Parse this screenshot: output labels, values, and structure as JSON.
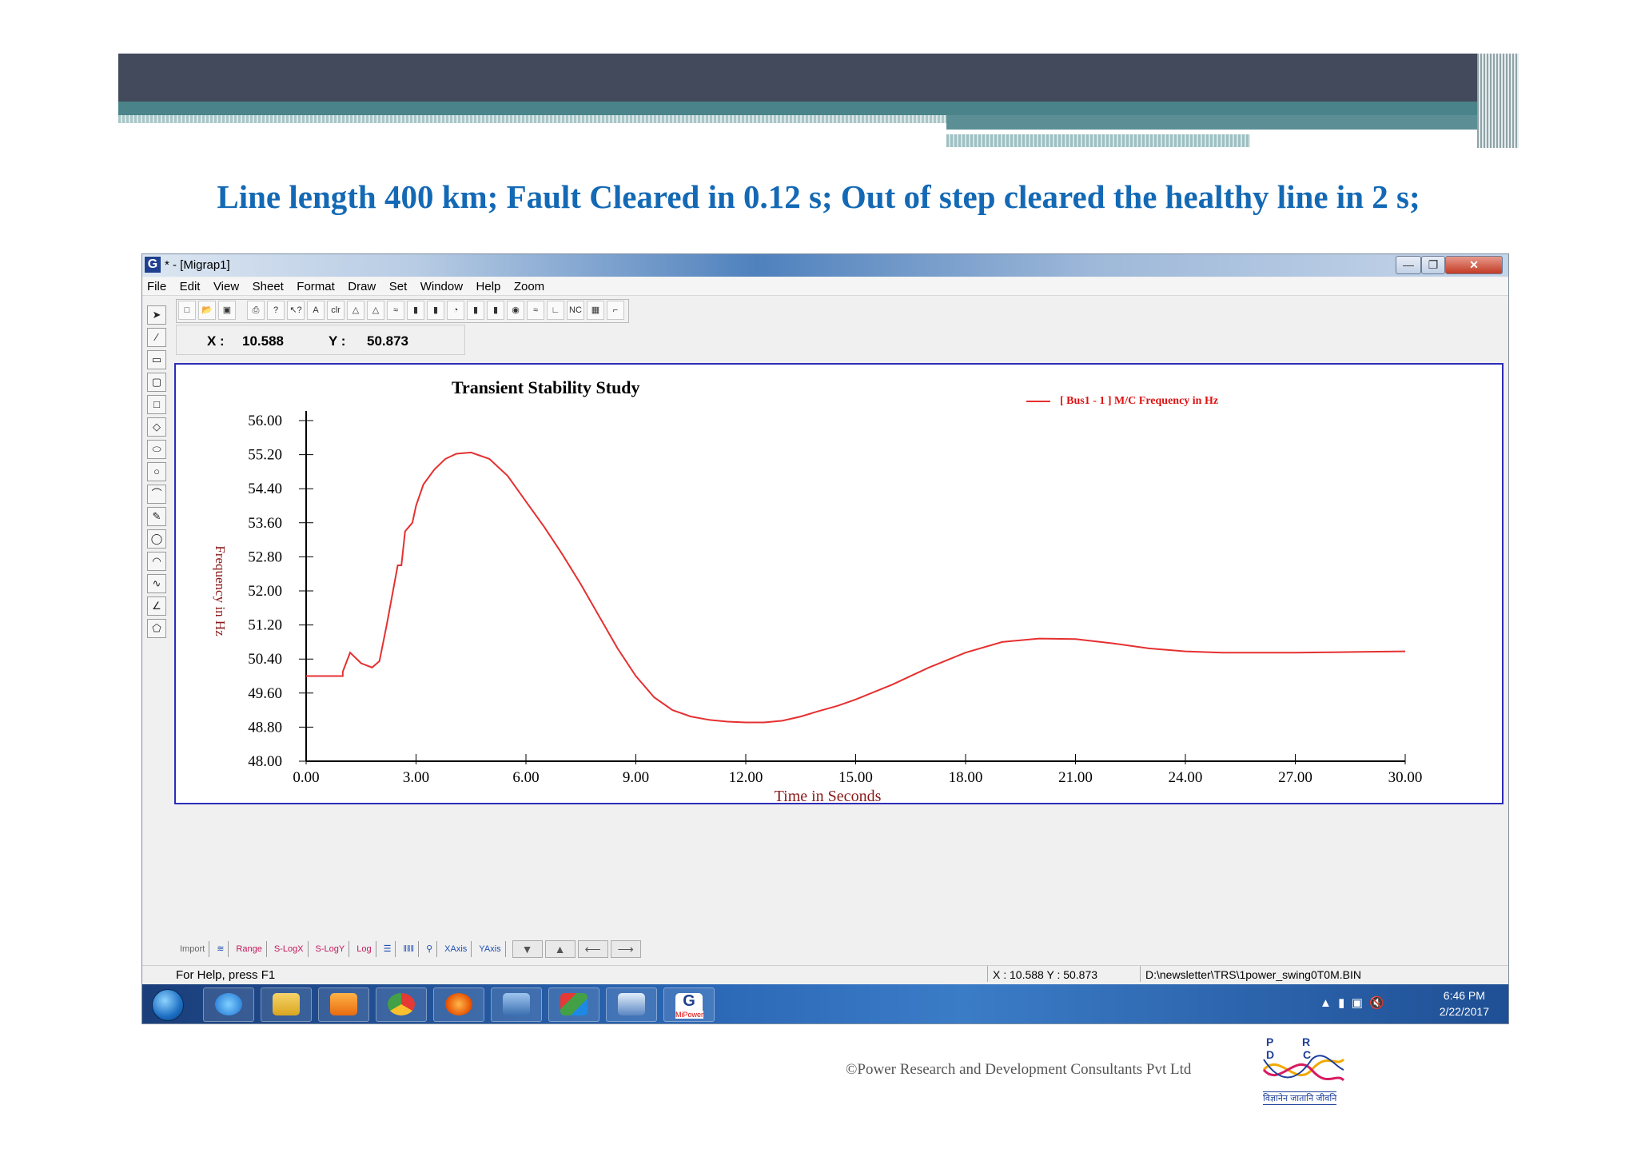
{
  "slide": {
    "title": "Line length 400 km; Fault Cleared in 0.12 s; Out of step cleared the healthy line in 2 s;",
    "copyright": "©Power Research and Development Consultants Pvt Ltd",
    "logo_text": "P R D C",
    "logo_tagline": "विज्ञानेन जातानि जीवनि"
  },
  "window": {
    "title": "* - [Migrap1]",
    "menu": [
      "File",
      "Edit",
      "View",
      "Sheet",
      "Format",
      "Draw",
      "Set",
      "Window",
      "Help",
      "Zoom"
    ],
    "coords": {
      "x_label": "X :",
      "x_value": "10.588",
      "y_label": "Y :",
      "y_value": "50.873"
    },
    "bottom_tools": [
      "Import",
      "Range",
      "S-LogX",
      "S-LogY",
      "Log",
      "XAxis",
      "YAxis"
    ],
    "status_help": "For Help, press F1",
    "status_coord": "X : 10.588   Y : 50.873",
    "status_path": "D:\\newsletter\\TRS\\1power_swing0T0M.BIN"
  },
  "taskbar": {
    "time": "6:46 PM",
    "date": "2/22/2017",
    "apps": [
      "internet-explorer",
      "file-explorer",
      "media-player",
      "chrome",
      "firefox",
      "network-tool",
      "cube-app",
      "tower-app",
      "mipower"
    ],
    "mipower_label": "MiPower"
  },
  "chart_data": {
    "type": "line",
    "title": "Transient Stability Study",
    "xlabel": "Time in Seconds",
    "ylabel": "Frequency in Hz",
    "xlim": [
      0,
      30
    ],
    "ylim": [
      48,
      56
    ],
    "xticks": [
      "0.00",
      "3.00",
      "6.00",
      "9.00",
      "12.00",
      "15.00",
      "18.00",
      "21.00",
      "24.00",
      "27.00",
      "30.00"
    ],
    "yticks": [
      "48.00",
      "48.80",
      "49.60",
      "50.40",
      "51.20",
      "52.00",
      "52.80",
      "53.60",
      "54.40",
      "55.20",
      "56.00"
    ],
    "legend_position": "top-right",
    "series": [
      {
        "name": "[ Bus1    -    1 ] M/C Frequency in Hz",
        "color": "#e53030",
        "x": [
          0,
          1.0,
          1.0,
          1.2,
          1.5,
          1.8,
          2.0,
          2.2,
          2.5,
          2.6,
          2.7,
          2.9,
          3.0,
          3.2,
          3.5,
          3.8,
          4.1,
          4.5,
          5.0,
          5.5,
          6.0,
          6.5,
          7.0,
          7.5,
          8.0,
          8.5,
          9.0,
          9.5,
          10.0,
          10.5,
          11.0,
          11.5,
          12.0,
          12.5,
          13.0,
          13.5,
          14.0,
          14.5,
          15.0,
          16.0,
          17.0,
          18.0,
          19.0,
          20.0,
          21.0,
          22.0,
          23.0,
          24.0,
          25.0,
          26.0,
          27.0,
          28.0,
          29.0,
          30.0
        ],
        "y": [
          50.0,
          50.0,
          50.1,
          50.55,
          50.3,
          50.2,
          50.35,
          51.2,
          52.6,
          52.6,
          53.4,
          53.6,
          54.0,
          54.5,
          54.85,
          55.1,
          55.22,
          55.25,
          55.1,
          54.7,
          54.1,
          53.5,
          52.85,
          52.15,
          51.4,
          50.65,
          50.0,
          49.5,
          49.2,
          49.05,
          48.97,
          48.93,
          48.91,
          48.91,
          48.95,
          49.05,
          49.18,
          49.3,
          49.45,
          49.8,
          50.2,
          50.55,
          50.8,
          50.88,
          50.87,
          50.77,
          50.65,
          50.58,
          50.55,
          50.55,
          50.55,
          50.56,
          50.57,
          50.58
        ]
      }
    ]
  }
}
